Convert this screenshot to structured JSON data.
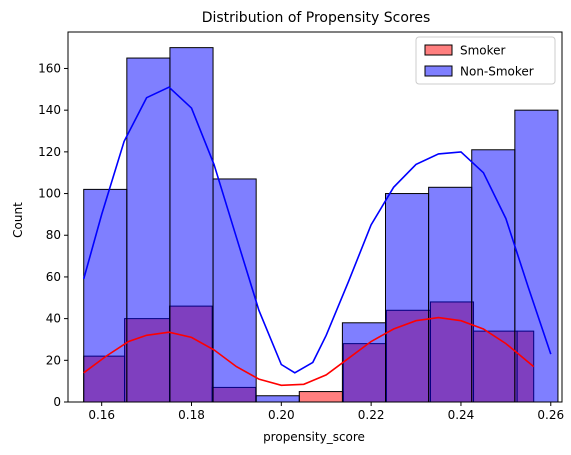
{
  "chart_data": {
    "type": "bar",
    "title": "Distribution of Propensity Scores",
    "xlabel": "propensity_score",
    "ylabel": "Count",
    "xlim": [
      0.1525,
      0.2625
    ],
    "ylim": [
      0,
      177.5
    ],
    "x_ticks": [
      0.16,
      0.18,
      0.2,
      0.22,
      0.24,
      0.26
    ],
    "x_tick_labels": [
      "0.16",
      "0.18",
      "0.20",
      "0.22",
      "0.24",
      "0.26"
    ],
    "y_ticks": [
      0,
      20,
      40,
      60,
      80,
      100,
      120,
      140,
      160
    ],
    "y_tick_labels": [
      "0",
      "20",
      "40",
      "60",
      "80",
      "100",
      "120",
      "140",
      "160"
    ],
    "legend_position": "top-right",
    "grid": false,
    "series": [
      {
        "name": "Smoker",
        "color": "#ff0000",
        "bins": [
          {
            "x0": 0.156,
            "x1": 0.1651,
            "count": 22
          },
          {
            "x0": 0.1651,
            "x1": 0.1751,
            "count": 40
          },
          {
            "x0": 0.1751,
            "x1": 0.1846,
            "count": 46
          },
          {
            "x0": 0.1846,
            "x1": 0.1943,
            "count": 7
          },
          {
            "x0": 0.1943,
            "x1": 0.204,
            "count": 0
          },
          {
            "x0": 0.204,
            "x1": 0.2138,
            "count": 5
          },
          {
            "x0": 0.2138,
            "x1": 0.2234,
            "count": 28
          },
          {
            "x0": 0.2234,
            "x1": 0.2332,
            "count": 44
          },
          {
            "x0": 0.2332,
            "x1": 0.2428,
            "count": 48
          },
          {
            "x0": 0.2428,
            "x1": 0.2525,
            "count": 34
          },
          {
            "x0": 0.2525,
            "x1": 0.2562,
            "count": 34
          }
        ],
        "kde": [
          [
            0.156,
            14
          ],
          [
            0.161,
            22
          ],
          [
            0.166,
            29
          ],
          [
            0.17,
            32
          ],
          [
            0.175,
            33.5
          ],
          [
            0.18,
            31
          ],
          [
            0.185,
            25
          ],
          [
            0.19,
            17
          ],
          [
            0.195,
            11
          ],
          [
            0.2,
            8
          ],
          [
            0.205,
            8.5
          ],
          [
            0.21,
            13
          ],
          [
            0.215,
            21
          ],
          [
            0.22,
            29
          ],
          [
            0.225,
            35
          ],
          [
            0.23,
            39
          ],
          [
            0.235,
            40.5
          ],
          [
            0.24,
            39
          ],
          [
            0.245,
            35
          ],
          [
            0.25,
            28
          ],
          [
            0.2562,
            17
          ]
        ]
      },
      {
        "name": "Non-Smoker",
        "color": "#0000ff",
        "bins": [
          {
            "x0": 0.156,
            "x1": 0.1656,
            "count": 102
          },
          {
            "x0": 0.1656,
            "x1": 0.1752,
            "count": 165
          },
          {
            "x0": 0.1752,
            "x1": 0.1848,
            "count": 170
          },
          {
            "x0": 0.1848,
            "x1": 0.1944,
            "count": 107
          },
          {
            "x0": 0.1944,
            "x1": 0.204,
            "count": 3
          },
          {
            "x0": 0.204,
            "x1": 0.2136,
            "count": 0
          },
          {
            "x0": 0.2136,
            "x1": 0.2232,
            "count": 38
          },
          {
            "x0": 0.2232,
            "x1": 0.2328,
            "count": 100
          },
          {
            "x0": 0.2328,
            "x1": 0.2424,
            "count": 103
          },
          {
            "x0": 0.2424,
            "x1": 0.252,
            "count": 121
          },
          {
            "x0": 0.252,
            "x1": 0.2616,
            "count": 140
          }
        ],
        "kde": [
          [
            0.156,
            59
          ],
          [
            0.16,
            90
          ],
          [
            0.165,
            125
          ],
          [
            0.17,
            146
          ],
          [
            0.175,
            151
          ],
          [
            0.18,
            141
          ],
          [
            0.185,
            114
          ],
          [
            0.19,
            79
          ],
          [
            0.195,
            44
          ],
          [
            0.2,
            18
          ],
          [
            0.203,
            14
          ],
          [
            0.207,
            19
          ],
          [
            0.21,
            32
          ],
          [
            0.215,
            58
          ],
          [
            0.22,
            85
          ],
          [
            0.225,
            103
          ],
          [
            0.23,
            114
          ],
          [
            0.235,
            119
          ],
          [
            0.24,
            120
          ],
          [
            0.245,
            110
          ],
          [
            0.25,
            88
          ],
          [
            0.255,
            55
          ],
          [
            0.26,
            23
          ]
        ]
      }
    ]
  }
}
